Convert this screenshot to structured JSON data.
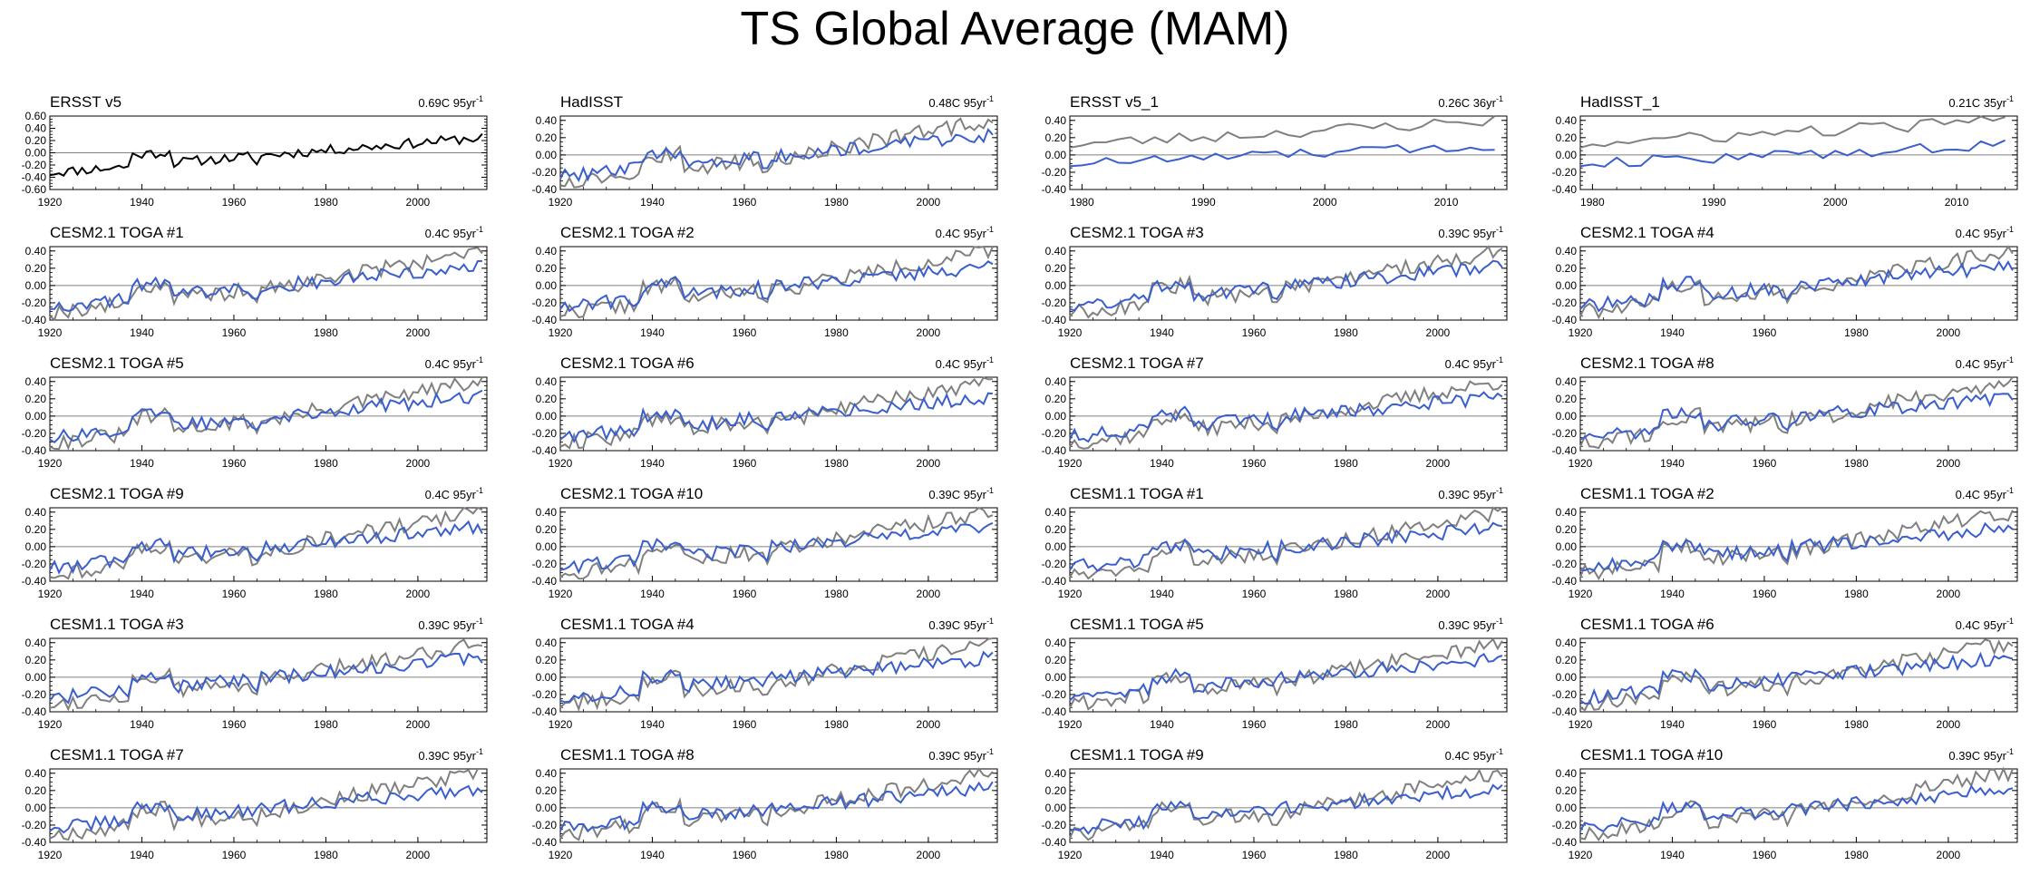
{
  "page": {
    "title": "TS Global Average (MAM)"
  },
  "style": {
    "obs_color": "#000000",
    "ensemble_color": "#808080",
    "member_color": "#3a5fcd",
    "zero_line_color": "#808080"
  },
  "chart_data": [
    {
      "type": "line",
      "title": "ERSST v5",
      "trend_value": "0.69C",
      "trend_unit": "95yr",
      "trend_exponent": "-1",
      "xlim": [
        1920,
        2015
      ],
      "ylim": [
        -0.6,
        0.6
      ],
      "yticks": [
        "0.60",
        "0.40",
        "0.20",
        "0.00",
        "-0.20",
        "-0.40",
        "-0.60"
      ],
      "xticks": [
        "1920",
        "1940",
        "1960",
        "1980",
        "2000"
      ],
      "series_style": "obs"
    },
    {
      "type": "line",
      "title": "HadISST",
      "trend_value": "0.48C",
      "trend_unit": "95yr",
      "trend_exponent": "-1",
      "xlim": [
        1920,
        2015
      ],
      "ylim": [
        -0.4,
        0.45
      ],
      "yticks": [
        "0.40",
        "0.20",
        "0.00",
        "-0.20",
        "-0.40"
      ],
      "xticks": [
        "1920",
        "1940",
        "1960",
        "1980",
        "2000"
      ],
      "series_style": "model"
    },
    {
      "type": "line",
      "title": "ERSST v5_1",
      "trend_value": "0.26C",
      "trend_unit": "36yr",
      "trend_exponent": "-1",
      "xlim": [
        1979,
        2015
      ],
      "ylim": [
        -0.4,
        0.45
      ],
      "yticks": [
        "0.40",
        "0.20",
        "0.00",
        "-0.20",
        "-0.40"
      ],
      "xticks": [
        "1980",
        "1990",
        "2000",
        "2010"
      ],
      "series_style": "short"
    },
    {
      "type": "line",
      "title": "HadISST_1",
      "trend_value": "0.21C",
      "trend_unit": "35yr",
      "trend_exponent": "-1",
      "xlim": [
        1979,
        2015
      ],
      "ylim": [
        -0.4,
        0.45
      ],
      "yticks": [
        "0.40",
        "0.20",
        "0.00",
        "-0.20",
        "-0.40"
      ],
      "xticks": [
        "1980",
        "1990",
        "2000",
        "2010"
      ],
      "series_style": "short"
    },
    {
      "type": "line",
      "title": "CESM2.1 TOGA #1",
      "trend_value": "0.4C",
      "trend_unit": "95yr",
      "trend_exponent": "-1",
      "xlim": [
        1920,
        2015
      ],
      "ylim": [
        -0.4,
        0.45
      ],
      "yticks": [
        "0.40",
        "0.20",
        "0.00",
        "-0.20",
        "-0.40"
      ],
      "xticks": [
        "1920",
        "1940",
        "1960",
        "1980",
        "2000"
      ],
      "series_style": "model"
    },
    {
      "type": "line",
      "title": "CESM2.1 TOGA #2",
      "trend_value": "0.4C",
      "trend_unit": "95yr",
      "trend_exponent": "-1",
      "xlim": [
        1920,
        2015
      ],
      "ylim": [
        -0.4,
        0.45
      ],
      "yticks": [
        "0.40",
        "0.20",
        "0.00",
        "-0.20",
        "-0.40"
      ],
      "xticks": [
        "1920",
        "1940",
        "1960",
        "1980",
        "2000"
      ],
      "series_style": "model"
    },
    {
      "type": "line",
      "title": "CESM2.1 TOGA #3",
      "trend_value": "0.39C",
      "trend_unit": "95yr",
      "trend_exponent": "-1",
      "xlim": [
        1920,
        2015
      ],
      "ylim": [
        -0.4,
        0.45
      ],
      "yticks": [
        "0.40",
        "0.20",
        "0.00",
        "-0.20",
        "-0.40"
      ],
      "xticks": [
        "1920",
        "1940",
        "1960",
        "1980",
        "2000"
      ],
      "series_style": "model"
    },
    {
      "type": "line",
      "title": "CESM2.1 TOGA #4",
      "trend_value": "0.4C",
      "trend_unit": "95yr",
      "trend_exponent": "-1",
      "xlim": [
        1920,
        2015
      ],
      "ylim": [
        -0.4,
        0.45
      ],
      "yticks": [
        "0.40",
        "0.20",
        "0.00",
        "-0.20",
        "-0.40"
      ],
      "xticks": [
        "1920",
        "1940",
        "1960",
        "1980",
        "2000"
      ],
      "series_style": "model"
    },
    {
      "type": "line",
      "title": "CESM2.1 TOGA #5",
      "trend_value": "0.4C",
      "trend_unit": "95yr",
      "trend_exponent": "-1",
      "xlim": [
        1920,
        2015
      ],
      "ylim": [
        -0.4,
        0.45
      ],
      "yticks": [
        "0.40",
        "0.20",
        "0.00",
        "-0.20",
        "-0.40"
      ],
      "xticks": [
        "1920",
        "1940",
        "1960",
        "1980",
        "2000"
      ],
      "series_style": "model"
    },
    {
      "type": "line",
      "title": "CESM2.1 TOGA #6",
      "trend_value": "0.4C",
      "trend_unit": "95yr",
      "trend_exponent": "-1",
      "xlim": [
        1920,
        2015
      ],
      "ylim": [
        -0.4,
        0.45
      ],
      "yticks": [
        "0.40",
        "0.20",
        "0.00",
        "-0.20",
        "-0.40"
      ],
      "xticks": [
        "1920",
        "1940",
        "1960",
        "1980",
        "2000"
      ],
      "series_style": "model"
    },
    {
      "type": "line",
      "title": "CESM2.1 TOGA #7",
      "trend_value": "0.4C",
      "trend_unit": "95yr",
      "trend_exponent": "-1",
      "xlim": [
        1920,
        2015
      ],
      "ylim": [
        -0.4,
        0.45
      ],
      "yticks": [
        "0.40",
        "0.20",
        "0.00",
        "-0.20",
        "-0.40"
      ],
      "xticks": [
        "1920",
        "1940",
        "1960",
        "1980",
        "2000"
      ],
      "series_style": "model"
    },
    {
      "type": "line",
      "title": "CESM2.1 TOGA #8",
      "trend_value": "0.4C",
      "trend_unit": "95yr",
      "trend_exponent": "-1",
      "xlim": [
        1920,
        2015
      ],
      "ylim": [
        -0.4,
        0.45
      ],
      "yticks": [
        "0.40",
        "0.20",
        "0.00",
        "-0.20",
        "-0.40"
      ],
      "xticks": [
        "1920",
        "1940",
        "1960",
        "1980",
        "2000"
      ],
      "series_style": "model"
    },
    {
      "type": "line",
      "title": "CESM2.1 TOGA #9",
      "trend_value": "0.4C",
      "trend_unit": "95yr",
      "trend_exponent": "-1",
      "xlim": [
        1920,
        2015
      ],
      "ylim": [
        -0.4,
        0.45
      ],
      "yticks": [
        "0.40",
        "0.20",
        "0.00",
        "-0.20",
        "-0.40"
      ],
      "xticks": [
        "1920",
        "1940",
        "1960",
        "1980",
        "2000"
      ],
      "series_style": "model"
    },
    {
      "type": "line",
      "title": "CESM2.1 TOGA #10",
      "trend_value": "0.39C",
      "trend_unit": "95yr",
      "trend_exponent": "-1",
      "xlim": [
        1920,
        2015
      ],
      "ylim": [
        -0.4,
        0.45
      ],
      "yticks": [
        "0.40",
        "0.20",
        "0.00",
        "-0.20",
        "-0.40"
      ],
      "xticks": [
        "1920",
        "1940",
        "1960",
        "1980",
        "2000"
      ],
      "series_style": "model"
    },
    {
      "type": "line",
      "title": "CESM1.1 TOGA #1",
      "trend_value": "0.39C",
      "trend_unit": "95yr",
      "trend_exponent": "-1",
      "xlim": [
        1920,
        2015
      ],
      "ylim": [
        -0.4,
        0.45
      ],
      "yticks": [
        "0.40",
        "0.20",
        "0.00",
        "-0.20",
        "-0.40"
      ],
      "xticks": [
        "1920",
        "1940",
        "1960",
        "1980",
        "2000"
      ],
      "series_style": "model"
    },
    {
      "type": "line",
      "title": "CESM1.1 TOGA #2",
      "trend_value": "0.4C",
      "trend_unit": "95yr",
      "trend_exponent": "-1",
      "xlim": [
        1920,
        2015
      ],
      "ylim": [
        -0.4,
        0.45
      ],
      "yticks": [
        "0.40",
        "0.20",
        "0.00",
        "-0.20",
        "-0.40"
      ],
      "xticks": [
        "1920",
        "1940",
        "1960",
        "1980",
        "2000"
      ],
      "series_style": "model"
    },
    {
      "type": "line",
      "title": "CESM1.1 TOGA #3",
      "trend_value": "0.39C",
      "trend_unit": "95yr",
      "trend_exponent": "-1",
      "xlim": [
        1920,
        2015
      ],
      "ylim": [
        -0.4,
        0.45
      ],
      "yticks": [
        "0.40",
        "0.20",
        "0.00",
        "-0.20",
        "-0.40"
      ],
      "xticks": [
        "1920",
        "1940",
        "1960",
        "1980",
        "2000"
      ],
      "series_style": "model"
    },
    {
      "type": "line",
      "title": "CESM1.1 TOGA #4",
      "trend_value": "0.39C",
      "trend_unit": "95yr",
      "trend_exponent": "-1",
      "xlim": [
        1920,
        2015
      ],
      "ylim": [
        -0.4,
        0.45
      ],
      "yticks": [
        "0.40",
        "0.20",
        "0.00",
        "-0.20",
        "-0.40"
      ],
      "xticks": [
        "1920",
        "1940",
        "1960",
        "1980",
        "2000"
      ],
      "series_style": "model"
    },
    {
      "type": "line",
      "title": "CESM1.1 TOGA #5",
      "trend_value": "0.39C",
      "trend_unit": "95yr",
      "trend_exponent": "-1",
      "xlim": [
        1920,
        2015
      ],
      "ylim": [
        -0.4,
        0.45
      ],
      "yticks": [
        "0.40",
        "0.20",
        "0.00",
        "-0.20",
        "-0.40"
      ],
      "xticks": [
        "1920",
        "1940",
        "1960",
        "1980",
        "2000"
      ],
      "series_style": "model"
    },
    {
      "type": "line",
      "title": "CESM1.1 TOGA #6",
      "trend_value": "0.4C",
      "trend_unit": "95yr",
      "trend_exponent": "-1",
      "xlim": [
        1920,
        2015
      ],
      "ylim": [
        -0.4,
        0.45
      ],
      "yticks": [
        "0.40",
        "0.20",
        "0.00",
        "-0.20",
        "-0.40"
      ],
      "xticks": [
        "1920",
        "1940",
        "1960",
        "1980",
        "2000"
      ],
      "series_style": "model"
    },
    {
      "type": "line",
      "title": "CESM1.1 TOGA #7",
      "trend_value": "0.39C",
      "trend_unit": "95yr",
      "trend_exponent": "-1",
      "xlim": [
        1920,
        2015
      ],
      "ylim": [
        -0.4,
        0.45
      ],
      "yticks": [
        "0.40",
        "0.20",
        "0.00",
        "-0.20",
        "-0.40"
      ],
      "xticks": [
        "1920",
        "1940",
        "1960",
        "1980",
        "2000"
      ],
      "series_style": "model"
    },
    {
      "type": "line",
      "title": "CESM1.1 TOGA #8",
      "trend_value": "0.39C",
      "trend_unit": "95yr",
      "trend_exponent": "-1",
      "xlim": [
        1920,
        2015
      ],
      "ylim": [
        -0.4,
        0.45
      ],
      "yticks": [
        "0.40",
        "0.20",
        "0.00",
        "-0.20",
        "-0.40"
      ],
      "xticks": [
        "1920",
        "1940",
        "1960",
        "1980",
        "2000"
      ],
      "series_style": "model"
    },
    {
      "type": "line",
      "title": "CESM1.1 TOGA #9",
      "trend_value": "0.4C",
      "trend_unit": "95yr",
      "trend_exponent": "-1",
      "xlim": [
        1920,
        2015
      ],
      "ylim": [
        -0.4,
        0.45
      ],
      "yticks": [
        "0.40",
        "0.20",
        "0.00",
        "-0.20",
        "-0.40"
      ],
      "xticks": [
        "1920",
        "1940",
        "1960",
        "1980",
        "2000"
      ],
      "series_style": "model"
    },
    {
      "type": "line",
      "title": "CESM1.1 TOGA #10",
      "trend_value": "0.39C",
      "trend_unit": "95yr",
      "trend_exponent": "-1",
      "xlim": [
        1920,
        2015
      ],
      "ylim": [
        -0.4,
        0.45
      ],
      "yticks": [
        "0.40",
        "0.20",
        "0.00",
        "-0.20",
        "-0.40"
      ],
      "xticks": [
        "1920",
        "1940",
        "1960",
        "1980",
        "2000"
      ],
      "series_style": "model"
    }
  ]
}
